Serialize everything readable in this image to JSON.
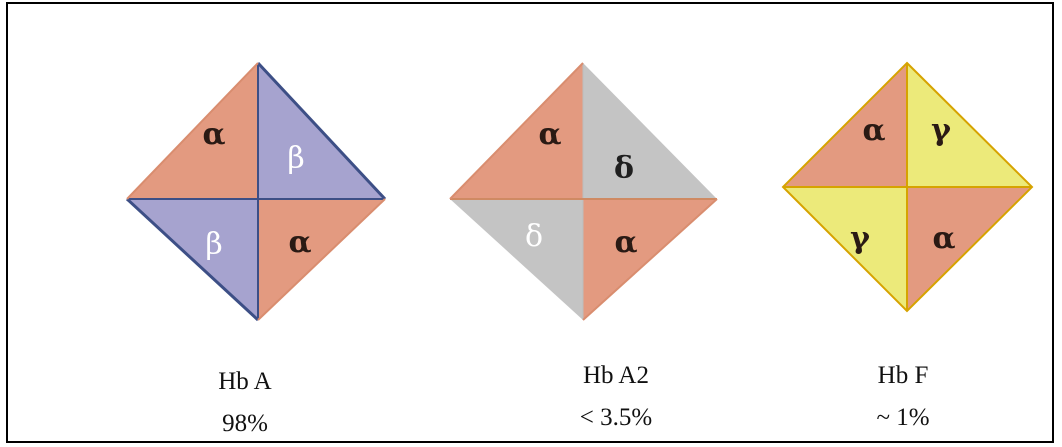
{
  "colors": {
    "alpha": "#e39a80",
    "beta": "#a6a3cf",
    "delta": "#c4c4c4",
    "gamma": "#ecea7a",
    "edge_beta": "#3d4f86",
    "edge_gamma": "#d6a300",
    "edge_delta": "#cf8a63"
  },
  "molecules": [
    {
      "name": "Hb A",
      "percent": "98%",
      "quadrants": {
        "top_left": "α",
        "top_right": "β",
        "bottom_left": "β",
        "bottom_right": "α"
      }
    },
    {
      "name": "Hb A2",
      "percent": "< 3.5%",
      "quadrants": {
        "top_left": "α",
        "top_right": "δ",
        "bottom_left": "δ",
        "bottom_right": "α"
      }
    },
    {
      "name": "Hb F",
      "percent": "~ 1%",
      "quadrants": {
        "top_left": "α",
        "top_right": "γ",
        "bottom_left": "γ",
        "bottom_right": "α"
      }
    }
  ]
}
